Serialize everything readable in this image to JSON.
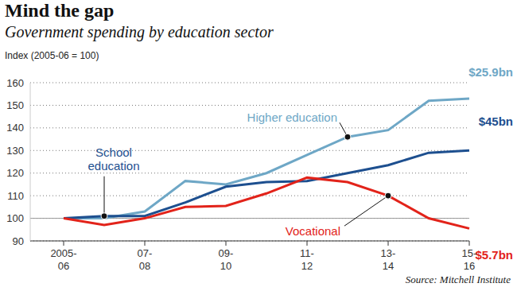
{
  "chart_data": {
    "type": "line",
    "title": "Mind the gap",
    "subtitle": "Government spending by education sector",
    "y_label": "Index (2005-06 = 100)",
    "source": "Source: Mitchell Institute",
    "categories": [
      "2005-06",
      null,
      "07-08",
      null,
      "09-10",
      null,
      "11-12",
      null,
      "13-14",
      null,
      "15-16"
    ],
    "ylim": [
      90,
      160
    ],
    "yticks": [
      90,
      100,
      110,
      120,
      130,
      140,
      150,
      160
    ],
    "grid": true,
    "reference_line": 100,
    "series": [
      {
        "name": "Higher education",
        "color": "#6ea7c6",
        "values": [
          100,
          100,
          103,
          116.5,
          115,
          120,
          128,
          136,
          139,
          152,
          153
        ],
        "end_label": "$25.9bn"
      },
      {
        "name": "School education",
        "color": "#1d4f8f",
        "values": [
          100,
          101,
          101,
          107,
          114,
          116,
          116.5,
          120,
          123.5,
          129,
          130
        ],
        "end_label": "$45bn"
      },
      {
        "name": "Vocational",
        "color": "#e2231a",
        "values": [
          100,
          97,
          100,
          105,
          105.5,
          111,
          118,
          116,
          110,
          100,
          95.5
        ],
        "end_label": "$5.7bn"
      }
    ]
  }
}
